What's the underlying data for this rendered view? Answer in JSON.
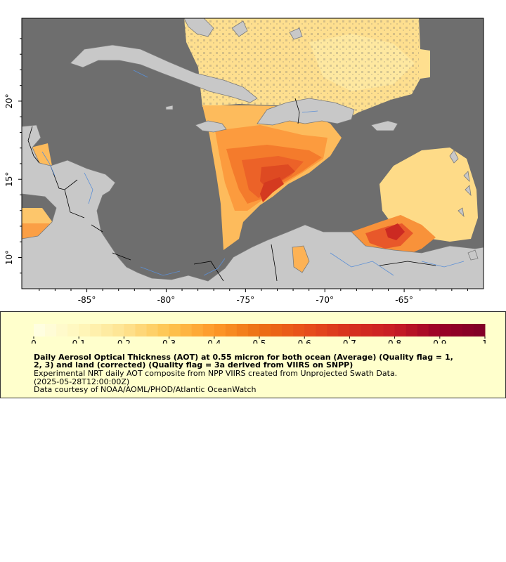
{
  "map": {
    "lon_ticks": [
      {
        "value": -85,
        "label": "-85°"
      },
      {
        "value": -80,
        "label": "-80°"
      },
      {
        "value": -75,
        "label": "-75°"
      },
      {
        "value": -70,
        "label": "-70°"
      },
      {
        "value": -65,
        "label": "-65°"
      }
    ],
    "lat_ticks": [
      {
        "value": 20,
        "label": "20°"
      },
      {
        "value": 15,
        "label": "15°"
      },
      {
        "value": 10,
        "label": "10°"
      }
    ],
    "lon_range": [
      -89.1,
      -60.0
    ],
    "lat_range": [
      8.0,
      25.3
    ],
    "colors": {
      "ocean_nodata": "#6e6e6e",
      "land": "#c8c8c8",
      "coast": "#7a7a7a",
      "rivers": "#5b8fd6",
      "borders": "#000000"
    }
  },
  "colorbar": {
    "min": 0,
    "max": 1,
    "tick_labels": [
      "0",
      "0.1",
      "0.2",
      "0.3",
      "0.4",
      "0.5",
      "0.6",
      "0.7",
      "0.8",
      "0.9",
      "1"
    ],
    "colors": [
      "#ffffe5",
      "#fff7bc",
      "#fee391",
      "#fec44f",
      "#fe9929",
      "#ec7014",
      "#e8501a",
      "#d7301f",
      "#c81d25",
      "#990026",
      "#800026"
    ]
  },
  "legend": {
    "title_line1": "Daily Aerosol Optical Thickness (AOT) at 0.55 micron for both ocean (Average) (Quality flag = 1,",
    "title_line2": "2, 3) and land (corrected) (Quality flag = 3a derived from VIIRS on SNPP)",
    "desc_line1": "Experimental NRT daily AOT composite from NPP VIIRS created from Unprojected Swath Data.",
    "desc_line2": "(2025-05-28T12:00:00Z)",
    "credit": "Data courtesy of NOAA/AOML/PHOD/Atlantic OceanWatch"
  }
}
